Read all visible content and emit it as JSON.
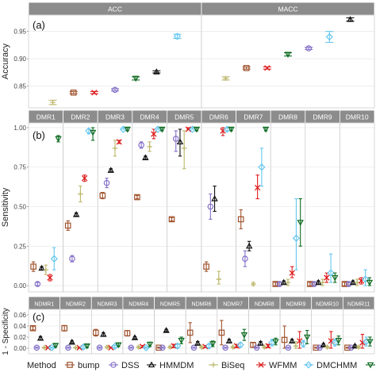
{
  "colors": {
    "bump": "#a0522d",
    "DSS": "#8470c8",
    "HMMDM": "#111111",
    "BiSeq": "#bdb76b",
    "WFMM": "#dd1c1c",
    "DMCHMM": "#66c7ee",
    "DMCFB": "#0f6b22"
  },
  "legend": {
    "title": "Method",
    "items": [
      {
        "name": "bump",
        "marker": "square"
      },
      {
        "name": "DSS",
        "marker": "circle"
      },
      {
        "name": "HMMDM",
        "marker": "triangle"
      },
      {
        "name": "BiSeq",
        "marker": "plus"
      },
      {
        "name": "WFMM",
        "marker": "cross"
      },
      {
        "name": "DMCHMM",
        "marker": "diamond"
      },
      {
        "name": "DMCFB",
        "marker": "down-triangle"
      }
    ]
  },
  "chart_data": [
    {
      "type": "scatter",
      "panel_label": "(a)",
      "ylabel": "Accuracy",
      "ylim": [
        0.81,
        0.98
      ],
      "yticks": [
        "0.85",
        "0.90",
        "0.95"
      ],
      "ytick_values": [
        0.85,
        0.9,
        0.95
      ],
      "facets": [
        "ACC",
        "MACC"
      ],
      "methods": [
        "bump",
        "DSS",
        "HMMDM",
        "BiSeq",
        "WFMM",
        "DMCHMM",
        "DMCFB"
      ],
      "series": [
        {
          "name": "bump",
          "values": [
            [
              0.838,
              0.836,
              0.84
            ],
            [
              0.883,
              0.881,
              0.885
            ]
          ]
        },
        {
          "name": "DSS",
          "values": [
            [
              0.843,
              0.841,
              0.845
            ],
            [
              0.919,
              0.917,
              0.921
            ]
          ]
        },
        {
          "name": "HMMDM",
          "values": [
            [
              0.876,
              0.874,
              0.878
            ],
            [
              0.972,
              0.969,
              0.975
            ]
          ]
        },
        {
          "name": "BiSeq",
          "values": [
            [
              0.82,
              0.816,
              0.824
            ],
            [
              0.864,
              0.861,
              0.867
            ]
          ]
        },
        {
          "name": "WFMM",
          "values": [
            [
              0.838,
              0.836,
              0.84
            ],
            [
              0.883,
              0.881,
              0.885
            ]
          ]
        },
        {
          "name": "DMCHMM",
          "values": [
            [
              0.941,
              0.937,
              0.945
            ],
            [
              0.94,
              0.93,
              0.95
            ]
          ]
        },
        {
          "name": "DMCFB",
          "values": [
            [
              0.864,
              0.861,
              0.867
            ],
            [
              0.908,
              0.905,
              0.911
            ]
          ]
        }
      ],
      "order_note_values": [
        [
          "BiSeq",
          "WFMM",
          "DSS",
          "DMCFB",
          "HMMDM",
          "DMCHMM",
          "DMCHMM"
        ]
      ]
    },
    {
      "type": "scatter",
      "panel_label": "(b)",
      "ylabel": "Sensitivity",
      "ylim": [
        -0.04,
        1.03
      ],
      "yticks": [
        "0.00",
        "0.25",
        "0.50",
        "0.75",
        "1.00"
      ],
      "ytick_values": [
        0,
        0.25,
        0.5,
        0.75,
        1.0
      ],
      "facets": [
        "DMR1",
        "DMR2",
        "DMR3",
        "DMR4",
        "DMR5",
        "DMR6",
        "DMR7",
        "DMR8",
        "DMR9",
        "DMR10"
      ],
      "methods": [
        "bump",
        "DSS",
        "HMMDM",
        "BiSeq",
        "WFMM",
        "DMCHMM",
        "DMCFB"
      ],
      "series": [
        {
          "name": "bump",
          "values": [
            [
              0.12,
              0.09,
              0.15
            ],
            [
              0.38,
              0.35,
              0.41
            ],
            [
              0.57,
              0.55,
              0.59
            ],
            [
              0.56,
              0.55,
              0.57
            ],
            [
              0.42,
              0.41,
              0.43
            ],
            [
              0.12,
              0.09,
              0.15
            ],
            [
              0.42,
              0.36,
              0.48
            ],
            [
              0.01,
              0.0,
              0.02
            ],
            [
              0.01,
              0.0,
              0.02
            ],
            [
              0.01,
              0.0,
              0.02
            ]
          ]
        },
        {
          "name": "DSS",
          "values": [
            [
              0.01,
              0.0,
              0.02
            ],
            [
              0.17,
              0.15,
              0.19
            ],
            [
              0.65,
              0.62,
              0.68
            ],
            [
              0.89,
              0.87,
              0.91
            ],
            [
              0.93,
              0.85,
              0.98
            ],
            [
              0.5,
              0.42,
              0.58
            ],
            [
              0.17,
              0.12,
              0.22
            ],
            [
              0.01,
              0.0,
              0.02
            ],
            [
              0.01,
              0.0,
              0.02
            ],
            [
              0.01,
              0.0,
              0.02
            ]
          ]
        },
        {
          "name": "HMMDM",
          "values": [
            [
              0.11,
              0.1,
              0.12
            ],
            [
              0.45,
              0.44,
              0.46
            ],
            [
              0.73,
              0.72,
              0.74
            ],
            [
              0.81,
              0.8,
              0.82
            ],
            [
              0.91,
              0.82,
              0.99
            ],
            [
              0.55,
              0.47,
              0.63
            ],
            [
              0.25,
              0.22,
              0.28
            ],
            [
              0.02,
              0.01,
              0.03
            ],
            [
              0.02,
              0.01,
              0.03
            ],
            [
              0.02,
              0.01,
              0.03
            ]
          ]
        },
        {
          "name": "BiSeq",
          "values": [
            [
              0.1,
              0.07,
              0.13
            ],
            [
              0.58,
              0.53,
              0.63
            ],
            [
              0.87,
              0.82,
              0.92
            ],
            [
              0.88,
              0.85,
              0.91
            ],
            [
              0.87,
              0.74,
              0.98
            ],
            [
              0.04,
              0.01,
              0.09
            ],
            [
              0.01,
              0.0,
              0.02
            ],
            [
              0.02,
              0.0,
              0.04
            ],
            [
              0.02,
              0.0,
              0.04
            ],
            [
              0.02,
              0.0,
              0.04
            ]
          ]
        },
        {
          "name": "WFMM",
          "values": [
            [
              0.05,
              0.03,
              0.07
            ],
            [
              0.68,
              0.66,
              0.7
            ],
            [
              0.91,
              0.9,
              0.92
            ],
            [
              0.96,
              0.93,
              0.99
            ],
            [
              0.99,
              0.99,
              1.0
            ],
            [
              0.98,
              0.95,
              1.0
            ],
            [
              0.62,
              0.55,
              0.7
            ],
            [
              0.08,
              0.05,
              0.12
            ],
            [
              0.05,
              0.02,
              0.08
            ],
            [
              0.03,
              0.01,
              0.05
            ]
          ]
        },
        {
          "name": "DMCHMM",
          "values": [
            [
              0.17,
              0.1,
              0.24
            ],
            [
              0.98,
              0.96,
              0.99
            ],
            [
              0.99,
              0.99,
              1.0
            ],
            [
              0.99,
              0.99,
              1.0
            ],
            [
              0.99,
              0.99,
              1.0
            ],
            [
              0.99,
              0.98,
              1.0
            ],
            [
              0.75,
              0.63,
              0.87
            ],
            [
              0.3,
              0.1,
              0.55
            ],
            [
              0.08,
              0.02,
              0.2
            ],
            [
              0.04,
              0.0,
              0.1
            ]
          ]
        },
        {
          "name": "DMCFB",
          "values": [
            [
              0.93,
              0.91,
              0.95
            ],
            [
              0.97,
              0.92,
              1.0
            ],
            [
              0.99,
              0.98,
              1.0
            ],
            [
              0.99,
              0.98,
              1.0
            ],
            [
              0.99,
              0.98,
              1.0
            ],
            [
              0.99,
              0.98,
              1.0
            ],
            [
              0.99,
              0.98,
              1.0
            ],
            [
              0.4,
              0.25,
              0.55
            ],
            [
              0.05,
              0.02,
              0.08
            ],
            [
              0.02,
              0.0,
              0.05
            ]
          ]
        }
      ]
    },
    {
      "type": "scatter",
      "panel_label": "(c)",
      "ylabel": "1 - Specificity",
      "ylim": [
        -0.01,
        0.07
      ],
      "yticks": [
        "0.00",
        "0.02",
        "0.04",
        "0.06"
      ],
      "ytick_values": [
        0,
        0.02,
        0.04,
        0.06
      ],
      "facets": [
        "NDMR1",
        "NDMR2",
        "NDMR3",
        "NDMR4",
        "NDMR5",
        "NDMR6",
        "NDMR7",
        "NDMR8",
        "NDMR9",
        "NDMR10",
        "NDMR11"
      ],
      "methods": [
        "bump",
        "DSS",
        "HMMDM",
        "BiSeq",
        "WFMM",
        "DMCHMM",
        "DMCFB"
      ],
      "series": [
        {
          "name": "bump",
          "values": [
            [
              0.036,
              0.033,
              0.039
            ],
            [
              0.036,
              0.031,
              0.041
            ],
            [
              0.028,
              0.022,
              0.034
            ],
            [
              0.027,
              0.022,
              0.032
            ],
            [
              0.001,
              0.0,
              0.002
            ],
            [
              0.028,
              0.01,
              0.046
            ],
            [
              0.028,
              0.006,
              0.05
            ],
            [
              0.006,
              0.002,
              0.01
            ],
            [
              0.015,
              0.0,
              0.04
            ],
            [
              0.001,
              0.0,
              0.002
            ],
            [
              0.001,
              0.0,
              0.002
            ]
          ]
        },
        {
          "name": "DSS",
          "values": [
            [
              0.001,
              0.0,
              0.002
            ],
            [
              0.001,
              0.0,
              0.002
            ],
            [
              0.001,
              0.0,
              0.002
            ],
            [
              0.001,
              0.0,
              0.002
            ],
            [
              0.001,
              0.0,
              0.002
            ],
            [
              0.001,
              0.0,
              0.002
            ],
            [
              0.001,
              0.0,
              0.002
            ],
            [
              0.001,
              0.0,
              0.002
            ],
            [
              0.001,
              0.0,
              0.002
            ],
            [
              0.001,
              0.0,
              0.002
            ],
            [
              0.001,
              0.0,
              0.002
            ]
          ]
        },
        {
          "name": "HMMDM",
          "values": [
            [
              0.018,
              0.015,
              0.021
            ],
            [
              0.011,
              0.009,
              0.013
            ],
            [
              0.025,
              0.022,
              0.028
            ],
            [
              0.019,
              0.017,
              0.021
            ],
            [
              0.032,
              0.03,
              0.034
            ],
            [
              0.009,
              0.006,
              0.012
            ],
            [
              0.013,
              0.01,
              0.016
            ],
            [
              0.009,
              0.006,
              0.012
            ],
            [
              0.013,
              0.01,
              0.016
            ],
            [
              0.006,
              0.004,
              0.008
            ],
            [
              0.004,
              0.002,
              0.006
            ]
          ]
        },
        {
          "name": "BiSeq",
          "values": [
            [
              0.001,
              0.0,
              0.002
            ],
            [
              0.001,
              0.0,
              0.002
            ],
            [
              0.002,
              0.0,
              0.004
            ],
            [
              0.002,
              0.0,
              0.004
            ],
            [
              0.002,
              0.0,
              0.004
            ],
            [
              0.002,
              0.0,
              0.004
            ],
            [
              0.002,
              0.0,
              0.004
            ],
            [
              0.002,
              0.0,
              0.004
            ],
            [
              0.004,
              0.0,
              0.012
            ],
            [
              0.002,
              0.0,
              0.004
            ],
            [
              0.002,
              0.0,
              0.004
            ]
          ]
        },
        {
          "name": "WFMM",
          "values": [
            [
              0.001,
              0.0,
              0.002
            ],
            [
              0.001,
              0.0,
              0.002
            ],
            [
              0.001,
              0.0,
              0.002
            ],
            [
              0.003,
              0.001,
              0.005
            ],
            [
              0.004,
              0.001,
              0.007
            ],
            [
              0.003,
              0.001,
              0.005
            ],
            [
              0.004,
              0.001,
              0.007
            ],
            [
              0.004,
              0.001,
              0.007
            ],
            [
              0.013,
              0.0,
              0.03
            ],
            [
              0.013,
              0.0,
              0.03
            ],
            [
              0.01,
              0.0,
              0.025
            ]
          ]
        },
        {
          "name": "DMCHMM",
          "values": [
            [
              0.001,
              0.0,
              0.002
            ],
            [
              0.002,
              0.0,
              0.004
            ],
            [
              0.003,
              0.001,
              0.005
            ],
            [
              0.001,
              0.0,
              0.002
            ],
            [
              0.004,
              0.001,
              0.007
            ],
            [
              0.004,
              0.001,
              0.007
            ],
            [
              0.006,
              0.002,
              0.01
            ],
            [
              0.01,
              0.004,
              0.016
            ],
            [
              0.008,
              0.002,
              0.014
            ],
            [
              0.01,
              0.004,
              0.016
            ],
            [
              0.012,
              0.004,
              0.02
            ]
          ]
        },
        {
          "name": "DMCFB",
          "values": [
            [
              0.005,
              0.002,
              0.008
            ],
            [
              0.004,
              0.001,
              0.007
            ],
            [
              0.006,
              0.003,
              0.009
            ],
            [
              0.007,
              0.003,
              0.011
            ],
            [
              0.014,
              0.008,
              0.02
            ],
            [
              0.008,
              0.003,
              0.013
            ],
            [
              0.024,
              0.014,
              0.034
            ],
            [
              0.012,
              0.006,
              0.018
            ],
            [
              0.02,
              0.008,
              0.032
            ],
            [
              0.014,
              0.006,
              0.022
            ],
            [
              0.012,
              0.004,
              0.02
            ]
          ]
        }
      ]
    }
  ]
}
